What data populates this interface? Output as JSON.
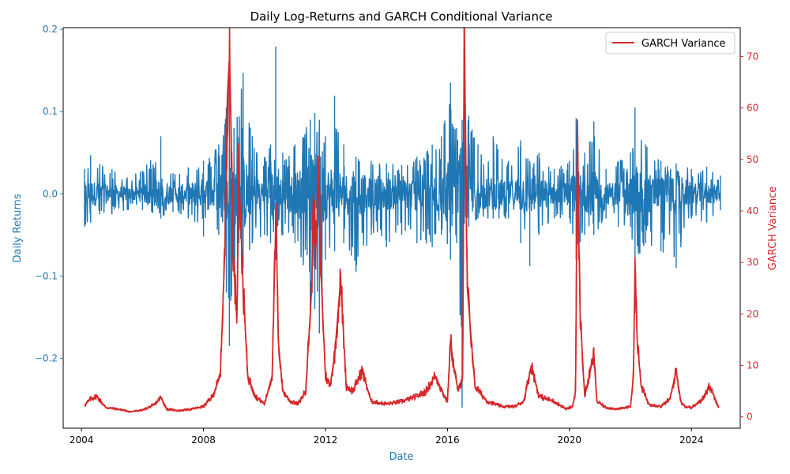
{
  "chart_data": {
    "type": "line",
    "title": "Daily Log-Returns and GARCH Conditional Variance",
    "xlabel": "Date",
    "ylabel_left": "Daily Returns",
    "ylabel_right": "GARCH Variance",
    "x_range": [
      2003.4,
      2025.6
    ],
    "x_ticks": [
      2004,
      2008,
      2012,
      2016,
      2020,
      2024
    ],
    "x_tick_labels": [
      "2004",
      "2008",
      "2012",
      "2016",
      "2020",
      "2024"
    ],
    "y_left_range": [
      -0.285,
      0.202
    ],
    "y_left_ticks": [
      -0.2,
      -0.1,
      0.0,
      0.1,
      0.2
    ],
    "y_left_tick_labels": [
      "−0.2",
      "−0.1",
      "0.0",
      "0.1",
      "0.2"
    ],
    "y_right_range": [
      -2.2,
      75.6
    ],
    "y_right_ticks": [
      0,
      10,
      20,
      30,
      40,
      50,
      60,
      70
    ],
    "y_right_tick_labels": [
      "0",
      "10",
      "20",
      "30",
      "40",
      "50",
      "60",
      "70"
    ],
    "grid": false,
    "legend": {
      "position": "top-right",
      "entries": [
        "GARCH Variance"
      ]
    },
    "colors": {
      "returns": "#1f77b4",
      "variance": "#d62728"
    },
    "series": [
      {
        "name": "",
        "axis": "left",
        "x": [
          2004.1,
          2004.3,
          2004.6,
          2005.0,
          2005.5,
          2006.0,
          2006.6,
          2007.0,
          2007.5,
          2008.0,
          2008.5,
          2008.75,
          2008.85,
          2009.0,
          2009.3,
          2009.6,
          2010.0,
          2010.2,
          2010.37,
          2010.6,
          2011.0,
          2011.5,
          2011.65,
          2011.8,
          2012.0,
          2012.3,
          2012.6,
          2013.0,
          2013.5,
          2014.0,
          2014.5,
          2015.0,
          2015.5,
          2015.8,
          2016.1,
          2016.3,
          2016.48,
          2016.7,
          2017.0,
          2017.5,
          2018.0,
          2018.4,
          2018.7,
          2019.0,
          2019.5,
          2020.0,
          2020.22,
          2020.5,
          2020.8,
          2021.2,
          2021.6,
          2022.0,
          2022.15,
          2022.5,
          2023.0,
          2023.5,
          2024.0,
          2024.5,
          2024.95
        ],
        "y_max": [
          0.03,
          0.047,
          0.036,
          0.03,
          0.02,
          0.028,
          0.07,
          0.025,
          0.032,
          0.04,
          0.06,
          0.105,
          0.16,
          0.08,
          0.147,
          0.07,
          0.045,
          0.06,
          0.179,
          0.05,
          0.06,
          0.09,
          0.098,
          0.09,
          0.07,
          0.119,
          0.06,
          0.045,
          0.04,
          0.037,
          0.035,
          0.045,
          0.06,
          0.07,
          0.135,
          0.08,
          0.09,
          0.095,
          0.06,
          0.07,
          0.04,
          0.065,
          0.04,
          0.05,
          0.03,
          0.04,
          0.092,
          0.05,
          0.088,
          0.03,
          0.04,
          0.05,
          0.105,
          0.06,
          0.04,
          0.037,
          0.03,
          0.033,
          0.022
        ],
        "y_min": [
          -0.04,
          -0.035,
          -0.025,
          -0.025,
          -0.02,
          -0.02,
          -0.03,
          -0.022,
          -0.03,
          -0.052,
          -0.05,
          -0.12,
          -0.185,
          -0.1,
          -0.09,
          -0.06,
          -0.05,
          -0.06,
          -0.08,
          -0.05,
          -0.06,
          -0.15,
          -0.14,
          -0.17,
          -0.08,
          -0.07,
          -0.06,
          -0.095,
          -0.05,
          -0.065,
          -0.05,
          -0.06,
          -0.065,
          -0.05,
          -0.08,
          -0.06,
          -0.26,
          -0.04,
          -0.03,
          -0.03,
          -0.03,
          -0.06,
          -0.088,
          -0.05,
          -0.03,
          -0.03,
          -0.08,
          -0.05,
          -0.05,
          -0.03,
          -0.04,
          -0.04,
          -0.085,
          -0.06,
          -0.07,
          -0.09,
          -0.03,
          -0.035,
          -0.02
        ]
      },
      {
        "name": "GARCH Variance",
        "axis": "right",
        "x": [
          2004.1,
          2004.3,
          2004.5,
          2004.8,
          2005.2,
          2005.6,
          2006.0,
          2006.4,
          2006.6,
          2006.8,
          2007.2,
          2007.6,
          2008.0,
          2008.3,
          2008.55,
          2008.7,
          2008.78,
          2008.84,
          2008.9,
          2008.98,
          2009.1,
          2009.15,
          2009.3,
          2009.45,
          2009.7,
          2010.0,
          2010.25,
          2010.38,
          2010.45,
          2010.6,
          2010.85,
          2011.1,
          2011.35,
          2011.55,
          2011.6,
          2011.68,
          2011.78,
          2011.85,
          2012.0,
          2012.15,
          2012.3,
          2012.5,
          2012.6,
          2012.68,
          2012.9,
          2013.2,
          2013.5,
          2014.0,
          2014.5,
          2015.0,
          2015.3,
          2015.6,
          2015.9,
          2016.0,
          2016.1,
          2016.2,
          2016.35,
          2016.5,
          2016.55,
          2016.65,
          2016.9,
          2017.3,
          2017.8,
          2018.2,
          2018.5,
          2018.75,
          2019.0,
          2019.5,
          2019.9,
          2020.1,
          2020.2,
          2020.26,
          2020.35,
          2020.5,
          2020.8,
          2020.9,
          2021.2,
          2021.6,
          2022.0,
          2022.1,
          2022.15,
          2022.22,
          2022.35,
          2022.6,
          2023.0,
          2023.3,
          2023.5,
          2023.65,
          2023.8,
          2024.0,
          2024.3,
          2024.6,
          2024.9
        ],
        "y": [
          2.2,
          3.5,
          4.0,
          1.8,
          1.5,
          1.0,
          1.3,
          2.4,
          3.8,
          1.5,
          1.2,
          1.5,
          2.0,
          4.0,
          8.0,
          32.0,
          62.0,
          69.0,
          58.0,
          30.0,
          20.0,
          49.0,
          25.0,
          8.0,
          4.0,
          2.5,
          8.0,
          40.0,
          15.0,
          5.0,
          3.0,
          2.5,
          5.0,
          25.0,
          43.0,
          32.0,
          47.0,
          28.0,
          8.0,
          6.0,
          12.0,
          27.0,
          15.0,
          6.0,
          5.0,
          9.0,
          3.0,
          2.5,
          3.0,
          4.0,
          5.0,
          8.0,
          4.0,
          3.0,
          15.0,
          10.0,
          5.0,
          8.0,
          72.0,
          25.0,
          6.0,
          3.0,
          2.0,
          2.0,
          3.0,
          10.0,
          4.0,
          3.0,
          1.5,
          2.0,
          5.0,
          53.0,
          20.0,
          4.0,
          12.0,
          3.0,
          1.8,
          1.5,
          2.0,
          8.0,
          31.0,
          15.0,
          6.0,
          2.5,
          2.0,
          3.5,
          9.0,
          3.0,
          2.0,
          1.8,
          3.0,
          6.0,
          1.8
        ]
      }
    ]
  }
}
